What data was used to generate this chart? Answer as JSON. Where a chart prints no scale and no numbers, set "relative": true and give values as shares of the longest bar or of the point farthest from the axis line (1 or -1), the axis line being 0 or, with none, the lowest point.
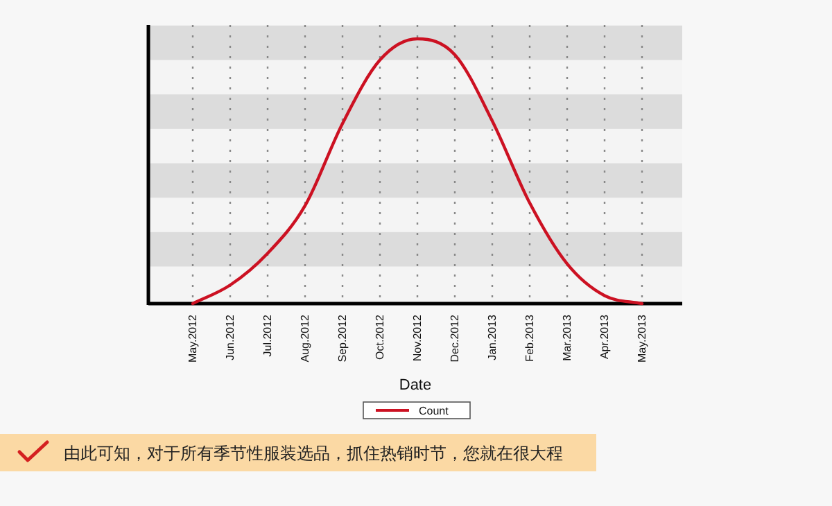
{
  "chart_data": {
    "type": "line",
    "xlabel": "Date",
    "categories": [
      "May.2012",
      "Jun.2012",
      "Jul.2012",
      "Aug.2012",
      "Sep.2012",
      "Oct.2012",
      "Nov.2012",
      "Dec.2012",
      "Jan.2013",
      "Feb.2013",
      "Mar.2013",
      "Apr.2013",
      "May.2013"
    ],
    "series": [
      {
        "name": "Count",
        "color": "#cc1122",
        "values": [
          0,
          0.07,
          0.19,
          0.37,
          0.68,
          0.92,
          1,
          0.94,
          0.69,
          0.38,
          0.15,
          0.03,
          0
        ]
      }
    ],
    "relative": true,
    "bands": [
      {
        "axis": "y",
        "from": 0.92,
        "to": 1.05,
        "color": "#dcdcdc"
      },
      {
        "axis": "y",
        "from": 0.66,
        "to": 0.79,
        "color": "#dcdcdc"
      },
      {
        "axis": "y",
        "from": 0.4,
        "to": 0.53,
        "color": "#dcdcdc"
      },
      {
        "axis": "y",
        "from": 0.14,
        "to": 0.27,
        "color": "#dcdcdc"
      }
    ],
    "grid": "x",
    "legend": "bottom",
    "annotations": [
      "由此可知，对于所有季节性服装选品，抓住热销时节，您就在很大程"
    ]
  }
}
